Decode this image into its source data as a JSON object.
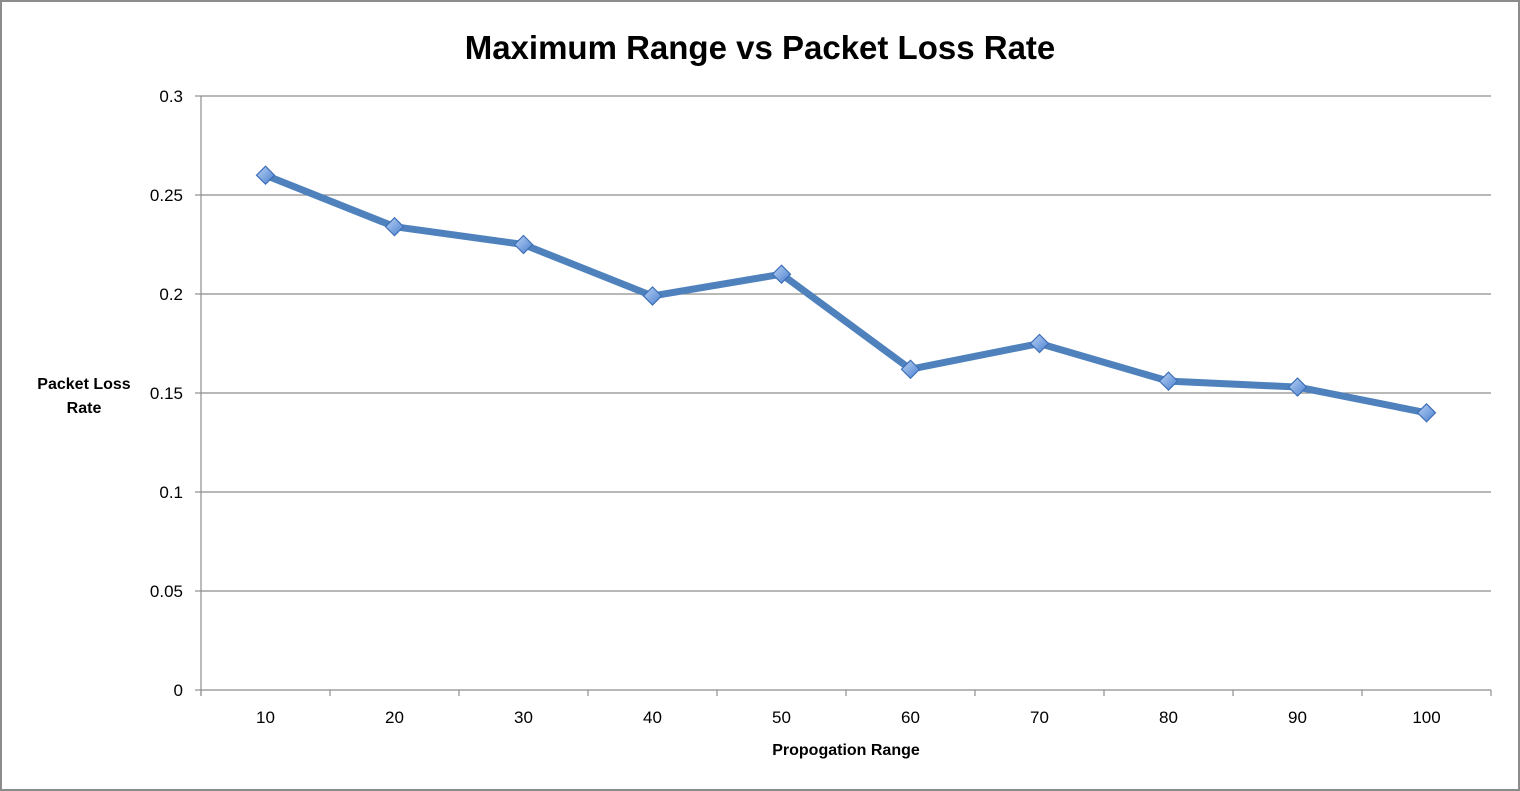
{
  "chart_data": {
    "type": "line",
    "title": "Maximum Range vs Packet Loss Rate",
    "xlabel": "Propogation Range",
    "ylabel_lines": [
      "Packet Loss",
      "Rate"
    ],
    "categories": [
      "10",
      "20",
      "30",
      "40",
      "50",
      "60",
      "70",
      "80",
      "90",
      "100"
    ],
    "series": [
      {
        "values": [
          0.26,
          0.234,
          0.225,
          0.199,
          0.21,
          0.162,
          0.175,
          0.156,
          0.153,
          0.14
        ],
        "color": "#4f81bd",
        "marker": "diamond"
      }
    ],
    "ylim": [
      0,
      0.3
    ],
    "yticks": [
      "0",
      "0.05",
      "0.1",
      "0.15",
      "0.2",
      "0.25",
      "0.3"
    ],
    "grid": "horizontal",
    "legend": "none"
  }
}
